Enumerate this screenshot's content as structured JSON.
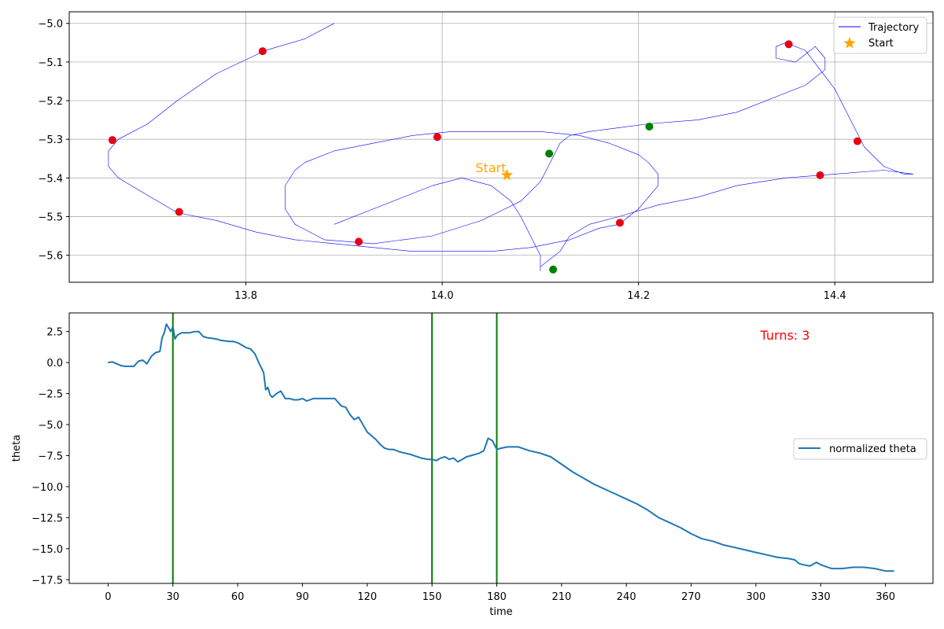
{
  "chart_data": [
    {
      "type": "line",
      "xlim": [
        13.62,
        14.5
      ],
      "ylim": [
        -5.67,
        -4.97
      ],
      "xticks": [
        13.8,
        14.0,
        14.2,
        14.4
      ],
      "xtick_labels": [
        "13.8",
        "14.0",
        "14.2",
        "14.4"
      ],
      "yticks": [
        -5.0,
        -5.1,
        -5.2,
        -5.3,
        -5.4,
        -5.5,
        -5.6
      ],
      "ytick_labels": [
        "−5.0",
        "−5.1",
        "−5.2",
        "−5.3",
        "−5.4",
        "−5.5",
        "−5.6"
      ],
      "grid": true,
      "legend_position": "top-right",
      "legend": [
        {
          "label": "Trajectory",
          "kind": "line",
          "color": "#0000ff"
        },
        {
          "label": "Start",
          "kind": "star",
          "color": "#ffa500"
        }
      ],
      "series": [
        {
          "name": "Trajectory",
          "color": "#0000ff",
          "x": [
            13.89,
            13.86,
            13.82,
            13.77,
            13.73,
            13.7,
            13.67,
            13.66,
            13.66,
            13.67,
            13.69,
            13.71,
            13.73,
            13.77,
            13.81,
            13.85,
            13.89,
            13.93,
            13.97,
            14.01,
            14.05,
            14.09,
            14.13,
            14.16,
            14.18,
            14.19,
            14.2,
            14.21,
            14.22,
            14.22,
            14.21,
            14.2,
            14.17,
            14.14,
            14.1,
            14.06,
            14.01,
            13.97,
            13.93,
            13.89,
            13.86,
            13.85,
            13.84,
            13.84,
            13.85,
            13.88,
            13.93,
            13.99,
            14.04,
            14.08,
            14.1,
            14.11,
            14.12,
            14.13,
            14.15,
            14.18,
            14.21,
            14.26,
            14.3,
            14.34,
            14.37,
            14.38,
            14.39,
            14.39,
            14.38,
            14.37,
            14.36,
            14.34,
            14.34,
            14.35,
            14.37,
            14.4,
            14.42,
            14.43,
            14.45,
            14.47,
            14.48,
            14.48,
            14.45,
            14.4,
            14.35,
            14.3,
            14.26,
            14.22,
            14.18,
            14.15,
            14.13,
            14.12,
            14.11,
            14.1,
            14.1,
            14.1,
            14.09,
            14.08,
            14.07,
            14.05,
            14.02,
            13.99,
            13.96,
            13.93,
            13.89
          ],
          "y": [
            -5.0,
            -5.04,
            -5.07,
            -5.13,
            -5.2,
            -5.26,
            -5.3,
            -5.33,
            -5.37,
            -5.4,
            -5.43,
            -5.46,
            -5.49,
            -5.51,
            -5.54,
            -5.56,
            -5.57,
            -5.58,
            -5.59,
            -5.59,
            -5.59,
            -5.58,
            -5.56,
            -5.53,
            -5.52,
            -5.5,
            -5.48,
            -5.45,
            -5.42,
            -5.39,
            -5.36,
            -5.34,
            -5.31,
            -5.29,
            -5.28,
            -5.28,
            -5.28,
            -5.29,
            -5.31,
            -5.33,
            -5.36,
            -5.38,
            -5.42,
            -5.48,
            -5.52,
            -5.56,
            -5.57,
            -5.55,
            -5.51,
            -5.46,
            -5.41,
            -5.36,
            -5.31,
            -5.29,
            -5.28,
            -5.27,
            -5.26,
            -5.25,
            -5.23,
            -5.19,
            -5.16,
            -5.14,
            -5.12,
            -5.09,
            -5.06,
            -5.08,
            -5.1,
            -5.09,
            -5.06,
            -5.05,
            -5.07,
            -5.17,
            -5.27,
            -5.32,
            -5.37,
            -5.39,
            -5.39,
            -5.39,
            -5.38,
            -5.39,
            -5.4,
            -5.42,
            -5.45,
            -5.47,
            -5.5,
            -5.52,
            -5.55,
            -5.59,
            -5.61,
            -5.63,
            -5.64,
            -5.6,
            -5.55,
            -5.5,
            -5.46,
            -5.42,
            -5.4,
            -5.42,
            -5.45,
            -5.48,
            -5.52
          ]
        }
      ],
      "markers": {
        "red": {
          "color": "#e60013",
          "x": [
            13.664,
            13.732,
            13.817,
            13.915,
            13.995,
            14.181,
            14.353,
            14.385,
            14.423
          ],
          "y": [
            -5.302,
            -5.488,
            -5.072,
            -5.565,
            -5.294,
            -5.516,
            -5.054,
            -5.393,
            -5.305
          ]
        },
        "green": {
          "color": "#008000",
          "x": [
            14.109,
            14.113,
            14.211
          ],
          "y": [
            -5.337,
            -5.637,
            -5.267
          ]
        },
        "start": {
          "x": 14.066,
          "y": -5.393,
          "color": "#ffa500",
          "label": "Start"
        }
      }
    },
    {
      "type": "line",
      "xlabel": "time",
      "ylabel": "theta",
      "xlim": [
        -18,
        382
      ],
      "ylim": [
        -17.8,
        4.0
      ],
      "xticks": [
        0,
        30,
        60,
        90,
        120,
        150,
        180,
        210,
        240,
        270,
        300,
        330,
        360
      ],
      "xtick_labels": [
        "0",
        "30",
        "60",
        "90",
        "120",
        "150",
        "180",
        "210",
        "240",
        "270",
        "300",
        "330",
        "360"
      ],
      "yticks": [
        2.5,
        0.0,
        -2.5,
        -5.0,
        -7.5,
        -10.0,
        -12.5,
        -15.0,
        -17.5
      ],
      "ytick_labels": [
        "2.5",
        "0.0",
        "−2.5",
        "−5.0",
        "−7.5",
        "−10.0",
        "−12.5",
        "−15.0",
        "−17.5"
      ],
      "grid": false,
      "legend_position": "center-right",
      "legend": [
        {
          "label": "normalized theta",
          "kind": "line",
          "color": "#1f77b4"
        }
      ],
      "annotation": {
        "text": "Turns: 3",
        "color": "#ff0000"
      },
      "vlines": {
        "x": [
          30,
          150,
          180
        ],
        "color": "#008000"
      },
      "series": [
        {
          "name": "normalized theta",
          "color": "#1f77b4",
          "x": [
            0,
            2,
            4,
            6,
            8,
            12,
            14,
            16,
            18,
            20,
            22,
            24,
            25,
            26,
            27,
            28,
            29,
            30,
            31,
            32,
            34,
            36,
            38,
            40,
            42,
            44,
            46,
            48,
            50,
            52,
            54,
            56,
            58,
            60,
            62,
            64,
            66,
            68,
            70,
            72,
            73,
            74,
            75,
            76,
            78,
            80,
            82,
            84,
            86,
            88,
            90,
            92,
            95,
            100,
            105,
            108,
            110,
            112,
            114,
            116,
            118,
            120,
            122,
            124,
            126,
            128,
            130,
            132,
            135,
            140,
            145,
            148,
            150,
            152,
            154,
            156,
            158,
            160,
            162,
            164,
            166,
            168,
            170,
            172,
            174,
            176,
            178,
            180,
            182,
            185,
            190,
            195,
            200,
            205,
            210,
            215,
            220,
            225,
            230,
            235,
            240,
            245,
            250,
            255,
            260,
            265,
            270,
            275,
            280,
            285,
            290,
            295,
            300,
            305,
            310,
            315,
            318,
            320,
            322,
            325,
            328,
            330,
            335,
            340,
            345,
            350,
            355,
            360,
            364
          ],
          "y": [
            0.0,
            0.05,
            -0.1,
            -0.25,
            -0.3,
            -0.3,
            0.1,
            0.2,
            -0.1,
            0.5,
            0.8,
            0.9,
            2.0,
            2.4,
            3.1,
            2.8,
            2.5,
            2.9,
            1.9,
            2.2,
            2.4,
            2.4,
            2.4,
            2.5,
            2.5,
            2.1,
            2.0,
            1.95,
            1.9,
            1.8,
            1.75,
            1.7,
            1.7,
            1.6,
            1.4,
            1.2,
            1.1,
            0.7,
            -0.1,
            -0.8,
            -2.2,
            -2.0,
            -2.6,
            -2.8,
            -2.5,
            -2.3,
            -2.9,
            -2.9,
            -3.0,
            -3.0,
            -2.9,
            -3.1,
            -2.9,
            -2.9,
            -2.9,
            -3.5,
            -3.6,
            -4.2,
            -4.6,
            -4.4,
            -5.0,
            -5.6,
            -5.9,
            -6.2,
            -6.6,
            -6.9,
            -7.0,
            -7.0,
            -7.2,
            -7.4,
            -7.7,
            -7.8,
            -7.8,
            -7.9,
            -7.7,
            -7.6,
            -7.8,
            -7.7,
            -8.0,
            -7.8,
            -7.6,
            -7.5,
            -7.4,
            -7.3,
            -7.1,
            -6.1,
            -6.3,
            -7.0,
            -6.9,
            -6.8,
            -6.8,
            -7.1,
            -7.3,
            -7.6,
            -8.2,
            -8.8,
            -9.3,
            -9.8,
            -10.2,
            -10.6,
            -11.0,
            -11.4,
            -11.9,
            -12.5,
            -12.9,
            -13.3,
            -13.8,
            -14.2,
            -14.4,
            -14.7,
            -14.9,
            -15.1,
            -15.3,
            -15.5,
            -15.7,
            -15.8,
            -15.9,
            -16.2,
            -16.3,
            -16.4,
            -16.1,
            -16.3,
            -16.6,
            -16.6,
            -16.5,
            -16.5,
            -16.6,
            -16.8,
            -16.8
          ]
        }
      ]
    }
  ]
}
